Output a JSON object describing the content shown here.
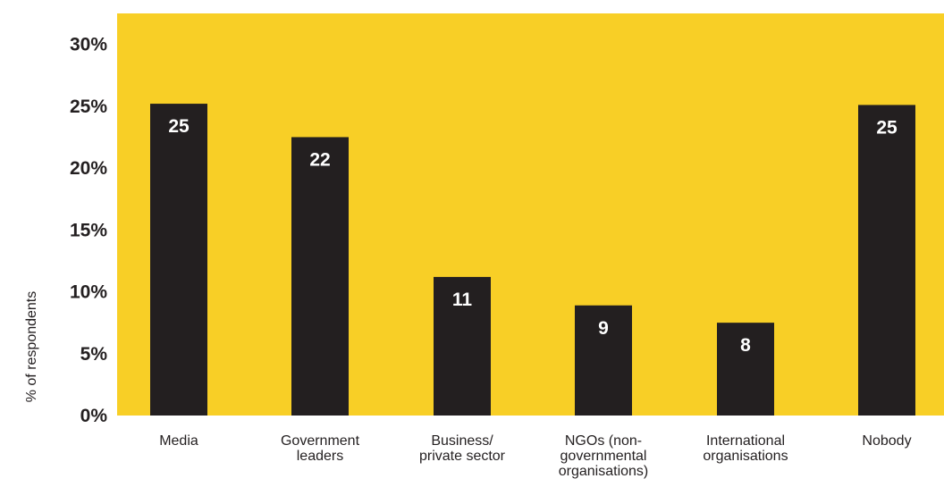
{
  "chart_data": {
    "type": "bar",
    "title": "",
    "xlabel": "",
    "ylabel": "% of respondents",
    "categories": [
      [
        "Media"
      ],
      [
        "Government",
        "leaders"
      ],
      [
        "Business/",
        "private sector"
      ],
      [
        "NGOs (non-",
        "governmental",
        "organisations)"
      ],
      [
        "International",
        "organisations"
      ],
      [
        "Nobody"
      ]
    ],
    "values": [
      25,
      22,
      11,
      9,
      8,
      25
    ],
    "heights": [
      25.2,
      22.5,
      11.2,
      8.9,
      7.5,
      25.1
    ],
    "data_labels": [
      "25",
      "22",
      "11",
      "9",
      "8",
      "25"
    ],
    "yticks": [
      0,
      5,
      10,
      15,
      20,
      25,
      30
    ],
    "ytick_labels": [
      "0%",
      "5%",
      "10%",
      "15%",
      "20%",
      "25%",
      "30%"
    ],
    "ylim": [
      0,
      32.5
    ],
    "grid": false,
    "legend": "none",
    "colors": {
      "plot_background": "#f8cf26",
      "bar": "#231f20",
      "data_label": "#ffffff",
      "text": "#231f20"
    }
  }
}
